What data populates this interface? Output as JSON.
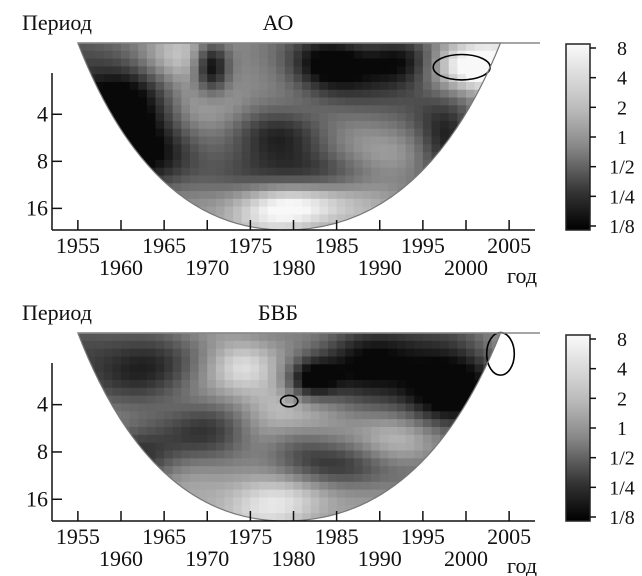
{
  "chart_data": [
    {
      "type": "heatmap",
      "title": "АО",
      "ylabel": "Период",
      "xlabel": "год",
      "x_range": [
        1952,
        2008
      ],
      "y_range": [
        1.4,
        22
      ],
      "y_log_scale": true,
      "y_ticks": [
        4,
        8,
        16
      ],
      "y_tick_labels": [
        "4",
        "8",
        "16"
      ],
      "x_ticks_upper": [
        1955,
        1965,
        1975,
        1985,
        1995,
        2005
      ],
      "x_ticks_lower": [
        1960,
        1970,
        1980,
        1990,
        2000
      ],
      "x_tick_labels_upper": [
        "1955",
        "1965",
        "1975",
        "1985",
        "1995",
        "2005"
      ],
      "x_tick_labels_lower": [
        "1960",
        "1970",
        "1980",
        "1990",
        "2000"
      ],
      "cone_of_influence": {
        "center": 1979,
        "left": 1955,
        "right": 2004,
        "base_period": 1.4,
        "apex_period": 22
      },
      "significance_contours": [
        {
          "x": 1999.5,
          "period": 2.0,
          "half_width_years": 3.3,
          "half_height_octaves": 0.27
        }
      ],
      "blobs": [
        {
          "x": 1958,
          "p": 2.4,
          "sx": 5,
          "sy": 0.7,
          "a": -1.6
        },
        {
          "x": 1960,
          "p": 4.5,
          "sx": 5,
          "sy": 0.6,
          "a": -1.9
        },
        {
          "x": 1964,
          "p": 8.0,
          "sx": 5,
          "sy": 0.6,
          "a": -1.4
        },
        {
          "x": 1970.5,
          "p": 2.0,
          "sx": 1.4,
          "sy": 0.4,
          "a": -2.2
        },
        {
          "x": 1978.5,
          "p": 5.5,
          "sx": 4.5,
          "sy": 0.45,
          "a": -2.6
        },
        {
          "x": 1983.5,
          "p": 1.8,
          "sx": 3.5,
          "sy": 0.45,
          "a": -2.4
        },
        {
          "x": 1974,
          "p": 3.0,
          "sx": 4,
          "sy": 0.5,
          "a": -1.2
        },
        {
          "x": 1991,
          "p": 3.0,
          "sx": 6,
          "sy": 0.6,
          "a": -1.3
        },
        {
          "x": 1993,
          "p": 1.8,
          "sx": 3,
          "sy": 0.4,
          "a": -1.7
        },
        {
          "x": 1998,
          "p": 6.0,
          "sx": 2.5,
          "sy": 0.5,
          "a": -1.6
        },
        {
          "x": 1981,
          "p": 10.0,
          "sx": 8,
          "sy": 0.35,
          "a": -1.5
        },
        {
          "x": 1980,
          "p": 15.0,
          "sx": 6,
          "sy": 0.4,
          "a": 1.6
        },
        {
          "x": 1974,
          "p": 3.8,
          "sx": 5,
          "sy": 0.6,
          "a": 1.6
        },
        {
          "x": 2001,
          "p": 2.0,
          "sx": 4,
          "sy": 0.4,
          "a": 2.2
        },
        {
          "x": 1966,
          "p": 1.8,
          "sx": 3,
          "sy": 0.4,
          "a": 1.0
        },
        {
          "x": 1986,
          "p": 6.0,
          "sx": 4,
          "sy": 0.5,
          "a": 0.8
        }
      ]
    },
    {
      "type": "heatmap",
      "title": "БВБ",
      "ylabel": "Период",
      "xlabel": "год",
      "x_range": [
        1952,
        2008
      ],
      "y_range": [
        1.4,
        22
      ],
      "y_log_scale": true,
      "y_ticks": [
        4,
        8,
        16
      ],
      "y_tick_labels": [
        "4",
        "8",
        "16"
      ],
      "x_ticks_upper": [
        1955,
        1965,
        1975,
        1985,
        1995,
        2005
      ],
      "x_ticks_lower": [
        1960,
        1970,
        1980,
        1990,
        2000
      ],
      "x_tick_labels_upper": [
        "1955",
        "1965",
        "1975",
        "1985",
        "1995",
        "2005"
      ],
      "x_tick_labels_lower": [
        "1960",
        "1970",
        "1980",
        "1990",
        "2000"
      ],
      "cone_of_influence": {
        "center": 1979,
        "left": 1955,
        "right": 2004,
        "base_period": 1.4,
        "apex_period": 22
      },
      "significance_contours": [
        {
          "x": 1979.5,
          "period": 3.8,
          "half_width_years": 1.0,
          "half_height_octaves": 0.12
        },
        {
          "x": 2004,
          "period": 1.9,
          "half_width_years": 1.6,
          "half_height_octaves": 0.45
        }
      ],
      "blobs": [
        {
          "x": 1960,
          "p": 2.2,
          "sx": 7,
          "sy": 0.6,
          "a": -1.8
        },
        {
          "x": 1990,
          "p": 2.5,
          "sx": 7,
          "sy": 0.8,
          "a": -2.3
        },
        {
          "x": 1999,
          "p": 3.5,
          "sx": 4,
          "sy": 0.7,
          "a": -1.9
        },
        {
          "x": 1970,
          "p": 6.0,
          "sx": 4,
          "sy": 0.5,
          "a": -1.6
        },
        {
          "x": 1986,
          "p": 10.0,
          "sx": 6,
          "sy": 0.35,
          "a": -1.6
        },
        {
          "x": 1982,
          "p": 2.8,
          "sx": 2,
          "sy": 0.3,
          "a": -2.0
        },
        {
          "x": 1961,
          "p": 9.0,
          "sx": 4,
          "sy": 0.5,
          "a": -1.3
        },
        {
          "x": 1980,
          "p": 6.5,
          "sx": 3,
          "sy": 0.4,
          "a": -1.2
        },
        {
          "x": 1977,
          "p": 16.0,
          "sx": 6,
          "sy": 0.5,
          "a": 1.0
        },
        {
          "x": 1974,
          "p": 2.2,
          "sx": 3,
          "sy": 0.4,
          "a": 1.2
        },
        {
          "x": 1979,
          "p": 4.5,
          "sx": 5,
          "sy": 0.6,
          "a": 1.3
        },
        {
          "x": 1992,
          "p": 6.0,
          "sx": 5,
          "sy": 0.5,
          "a": 1.1
        }
      ]
    }
  ],
  "colorbar": {
    "labels": [
      "8",
      "4",
      "2",
      "1",
      "1/2",
      "1/4",
      "1/8"
    ]
  }
}
